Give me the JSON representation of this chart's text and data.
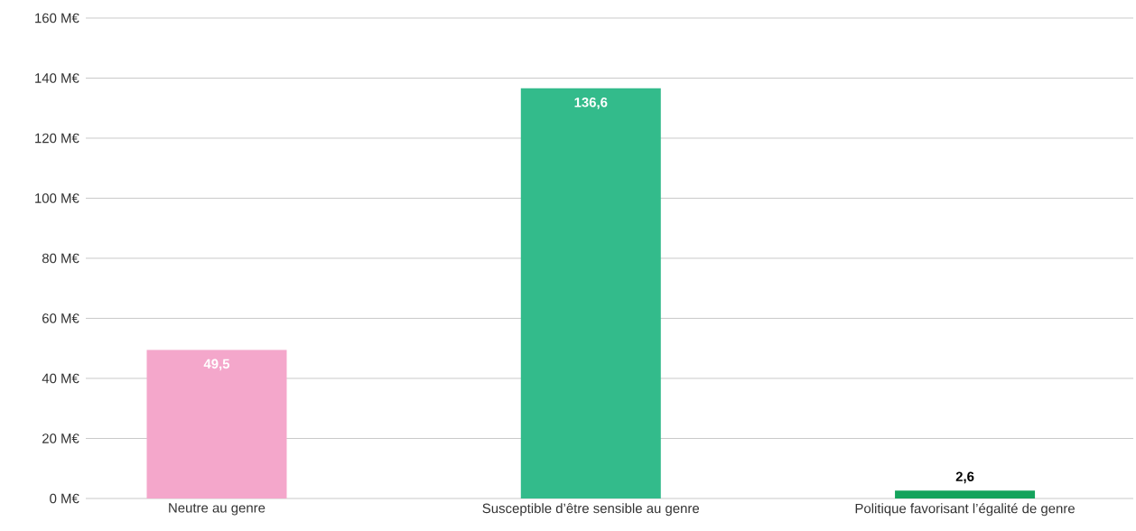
{
  "chart_data": {
    "type": "bar",
    "categories": [
      "Neutre au genre",
      "Susceptible d’être sensible au genre",
      "Politique favorisant l’égalité de genre"
    ],
    "values": [
      49.5,
      136.6,
      2.6
    ],
    "colors": [
      "#f4a7cb",
      "#33bb8b",
      "#14a35c"
    ],
    "value_labels": [
      "49,5",
      "136,6",
      "2,6"
    ],
    "ylim": [
      0,
      160
    ],
    "yticks": [
      {
        "value": 0,
        "label": "0 M€"
      },
      {
        "value": 20,
        "label": "20 M€"
      },
      {
        "value": 40,
        "label": "40 M€"
      },
      {
        "value": 60,
        "label": "60 M€"
      },
      {
        "value": 80,
        "label": "80 M€"
      },
      {
        "value": 100,
        "label": "100 M€"
      },
      {
        "value": 120,
        "label": "120 M€"
      },
      {
        "value": 140,
        "label": "140 M€"
      },
      {
        "value": 160,
        "label": "160 M€"
      }
    ],
    "grid": "y"
  }
}
